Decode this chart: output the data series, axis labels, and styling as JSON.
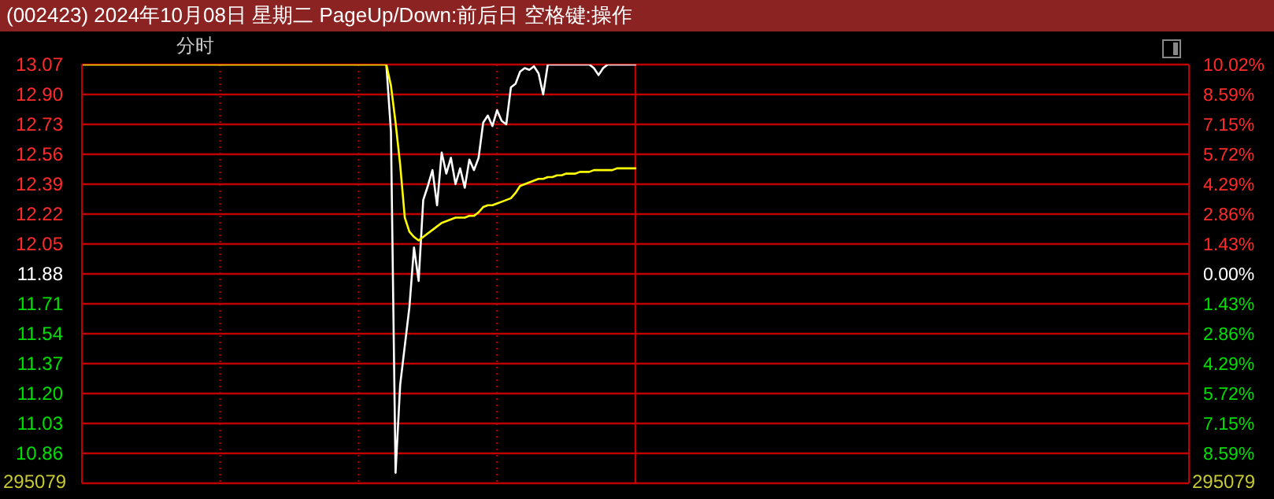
{
  "chart_data": {
    "type": "line",
    "title": "(002423) 2024年10月08日 星期二 PageUp/Down:前后日 空格键:操作",
    "subtitle": "分时",
    "annotations": [
      "295079",
      "295079"
    ],
    "categories": [
      null,
      null,
      null,
      null,
      null,
      null,
      null,
      null,
      null,
      null,
      null,
      null,
      null,
      null,
      null,
      null,
      null,
      null,
      null,
      null,
      null,
      null,
      null,
      null,
      null,
      null,
      null,
      null,
      null,
      null,
      null,
      null,
      null,
      null,
      null,
      null,
      null,
      null,
      null,
      null,
      null,
      null,
      null,
      null,
      null,
      null,
      null,
      null,
      null,
      null,
      null,
      null,
      null,
      null,
      null,
      null,
      null,
      null,
      null,
      null,
      null,
      null,
      null,
      null,
      null,
      null,
      null,
      null,
      null,
      null,
      null,
      null,
      null,
      null,
      null,
      null,
      null,
      null,
      null,
      null,
      null,
      null,
      null,
      null,
      null,
      null,
      null,
      null,
      null,
      null,
      null,
      null,
      null,
      null,
      null,
      null,
      null,
      null,
      null,
      null,
      null,
      null,
      null,
      null,
      null,
      null,
      null,
      null,
      null,
      null,
      null,
      null,
      null,
      null,
      null,
      null,
      null,
      null,
      null,
      null,
      null,
      null,
      null,
      null,
      null,
      null,
      null,
      null,
      null,
      null,
      null,
      null,
      null,
      null,
      null,
      null,
      null,
      null,
      null,
      null,
      null,
      null,
      null,
      null,
      null,
      null,
      null,
      null,
      null,
      null,
      null,
      null,
      null,
      null,
      null,
      null,
      null,
      null,
      null,
      null,
      null,
      null,
      null,
      null,
      null,
      null,
      null,
      null,
      null,
      null,
      null,
      null,
      null,
      null,
      null,
      null,
      null,
      null,
      null,
      null,
      null,
      null,
      null,
      null,
      null,
      null,
      null,
      null,
      null,
      null,
      null,
      null,
      null,
      null,
      null,
      null,
      null,
      null,
      null,
      null,
      null,
      null,
      null,
      null,
      null,
      null,
      null,
      null,
      null,
      null,
      null,
      null,
      null,
      null,
      null,
      null,
      null,
      null,
      null,
      null,
      null,
      null,
      null,
      null,
      null,
      null,
      null,
      null,
      null,
      null,
      null,
      null,
      null,
      null,
      null,
      null,
      null,
      null,
      null,
      null,
      null
    ],
    "series": [
      {
        "color": "#ffffff",
        "values": [
          null,
          null,
          null,
          null,
          null,
          null,
          null,
          null,
          null,
          null,
          null,
          null,
          null,
          null,
          null,
          null,
          null,
          null,
          null,
          null,
          null,
          null,
          null,
          null,
          null,
          null,
          null,
          null,
          null,
          null,
          null,
          null,
          null,
          null,
          null,
          null,
          null,
          null,
          null,
          null,
          null,
          null,
          null,
          null,
          null,
          null,
          null,
          null,
          null,
          null,
          null,
          null,
          null,
          null,
          null,
          null,
          null,
          null,
          null,
          null,
          null,
          null,
          null,
          null,
          null,
          null,
          13.07,
          12.69,
          10.75,
          11.25,
          11.47,
          11.69,
          12.03,
          11.84,
          12.3,
          12.38,
          12.47,
          12.27,
          12.57,
          12.45,
          12.54,
          12.39,
          12.48,
          12.37,
          12.53,
          12.47,
          12.54,
          12.74,
          12.78,
          12.72,
          12.81,
          12.75,
          12.73,
          12.94,
          12.96,
          13.03,
          13.05,
          13.04,
          13.06,
          13.02,
          12.9,
          13.07,
          13.07,
          13.07,
          13.07,
          13.07,
          13.07,
          13.07,
          13.07,
          13.07,
          13.07,
          13.05,
          13.01,
          13.05,
          13.07,
          13.07,
          13.07,
          13.07,
          13.07,
          13.07,
          13.07,
          null,
          null,
          null,
          null,
          null,
          null,
          null,
          null,
          null,
          null,
          null,
          null,
          null,
          null,
          null,
          null,
          null,
          null,
          null,
          null,
          null,
          null,
          null,
          null,
          null,
          null,
          null,
          null,
          null,
          null,
          null,
          null,
          null,
          null,
          null,
          null,
          null,
          null,
          null,
          null,
          null,
          null,
          null,
          null,
          null,
          null,
          null,
          null,
          null,
          null,
          null,
          null,
          null,
          null,
          null,
          null,
          null,
          null,
          null,
          null,
          null,
          null,
          null,
          null,
          null,
          null,
          null,
          null,
          null,
          null,
          null,
          null,
          null,
          null,
          null,
          null,
          null,
          null,
          null,
          null,
          null,
          null,
          null,
          null,
          null,
          null,
          null,
          null,
          null,
          null,
          null,
          null,
          null,
          null,
          null,
          null,
          null,
          null,
          null,
          null,
          null,
          null,
          null,
          null,
          null,
          null,
          null,
          null,
          null,
          null,
          null,
          null,
          null,
          null,
          null,
          null,
          null,
          null,
          null,
          null
        ]
      },
      {
        "color": "#ffff00",
        "values": [
          13.07,
          13.07,
          13.07,
          13.07,
          13.07,
          13.07,
          13.07,
          13.07,
          13.07,
          13.07,
          13.07,
          13.07,
          13.07,
          13.07,
          13.07,
          13.07,
          13.07,
          13.07,
          13.07,
          13.07,
          13.07,
          13.07,
          13.07,
          13.07,
          13.07,
          13.07,
          13.07,
          13.07,
          13.07,
          13.07,
          13.07,
          13.07,
          13.07,
          13.07,
          13.07,
          13.07,
          13.07,
          13.07,
          13.07,
          13.07,
          13.07,
          13.07,
          13.07,
          13.07,
          13.07,
          13.07,
          13.07,
          13.07,
          13.07,
          13.07,
          13.07,
          13.07,
          13.07,
          13.07,
          13.07,
          13.07,
          13.07,
          13.07,
          13.07,
          13.07,
          13.07,
          13.07,
          13.07,
          13.07,
          13.07,
          13.07,
          13.07,
          12.95,
          12.74,
          12.5,
          12.2,
          12.12,
          12.09,
          12.07,
          12.09,
          12.11,
          12.13,
          12.15,
          12.17,
          12.18,
          12.19,
          12.2,
          12.2,
          12.2,
          12.21,
          12.21,
          12.23,
          12.26,
          12.27,
          12.27,
          12.28,
          12.29,
          12.3,
          12.31,
          12.34,
          12.38,
          12.39,
          12.4,
          12.41,
          12.42,
          12.42,
          12.43,
          12.43,
          12.44,
          12.44,
          12.45,
          12.45,
          12.45,
          12.46,
          12.46,
          12.46,
          12.47,
          12.47,
          12.47,
          12.47,
          12.47,
          12.48,
          12.48,
          12.48,
          12.48,
          12.48,
          null,
          null,
          null,
          null,
          null,
          null,
          null,
          null,
          null,
          null,
          null,
          null,
          null,
          null,
          null,
          null,
          null,
          null,
          null,
          null,
          null,
          null,
          null,
          null,
          null,
          null,
          null,
          null,
          null,
          null,
          null,
          null,
          null,
          null,
          null,
          null,
          null,
          null,
          null,
          null,
          null,
          null,
          null,
          null,
          null,
          null,
          null,
          null,
          null,
          null,
          null,
          null,
          null,
          null,
          null,
          null,
          null,
          null,
          null,
          null,
          null,
          null,
          null,
          null,
          null,
          null,
          null,
          null,
          null,
          null,
          null,
          null,
          null,
          null,
          null,
          null,
          null,
          null,
          null,
          null,
          null,
          null,
          null,
          null,
          null,
          null,
          null,
          null,
          null,
          null,
          null,
          null,
          null,
          null,
          null,
          null,
          null,
          null,
          null,
          null,
          null,
          null,
          null,
          null,
          null,
          null,
          null,
          null,
          null,
          null,
          null,
          null,
          null,
          null,
          null,
          null,
          null,
          null,
          null,
          null
        ]
      }
    ],
    "ylim": [
      10.69,
      13.07
    ],
    "yticks": [
      13.07,
      {
        "value": 12.9,
        "label": "12.90"
      },
      12.73,
      12.56,
      12.39,
      12.22,
      12.05,
      11.88,
      11.71,
      11.54,
      11.37,
      {
        "value": 11.2,
        "label": "11.20"
      },
      11.03,
      10.86
    ],
    "y2lim": [
      -10.02,
      10.02
    ],
    "y2ticks": [
      {
        "value": 10.02,
        "label": "10.02%"
      },
      {
        "value": 8.59,
        "label": "8.59%"
      },
      {
        "value": 7.15,
        "label": "7.15%"
      },
      {
        "value": 5.72,
        "label": "5.72%"
      },
      {
        "value": 4.29,
        "label": "4.29%"
      },
      {
        "value": 2.86,
        "label": "2.86%"
      },
      {
        "value": 1.43,
        "label": "1.43%"
      },
      {
        "value": 0,
        "label": "0.00%"
      },
      {
        "value": -1.43,
        "label": "1.43%"
      },
      {
        "value": -2.86,
        "label": "2.86%"
      },
      {
        "value": -4.29,
        "label": "4.29%"
      },
      {
        "value": -5.72,
        "label": "5.72%"
      },
      {
        "value": -7.15,
        "label": "7.15%"
      },
      {
        "value": -8.59,
        "label": "8.59%"
      }
    ],
    "grid": "y"
  }
}
